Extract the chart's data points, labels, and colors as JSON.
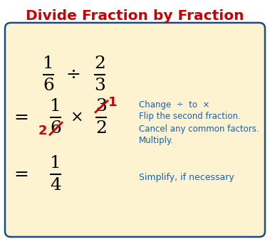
{
  "title": "Divide Fraction by Fraction",
  "title_color": "#cc0000",
  "title_fontsize": 14.5,
  "bg_color": "#ffffff",
  "box_color": "#fdf3d0",
  "box_edge_color": "#1a4a8a",
  "math_color": "#000000",
  "red_color": "#cc0000",
  "blue_color": "#1a5fa8",
  "notes": [
    "Change  ÷  to  ×",
    "Flip the second fraction.",
    "Cancel any common factors.",
    "Multiply."
  ],
  "simplify_note": "Simplify, if necessary",
  "fig_w": 3.79,
  "fig_h": 3.43,
  "dpi": 100
}
